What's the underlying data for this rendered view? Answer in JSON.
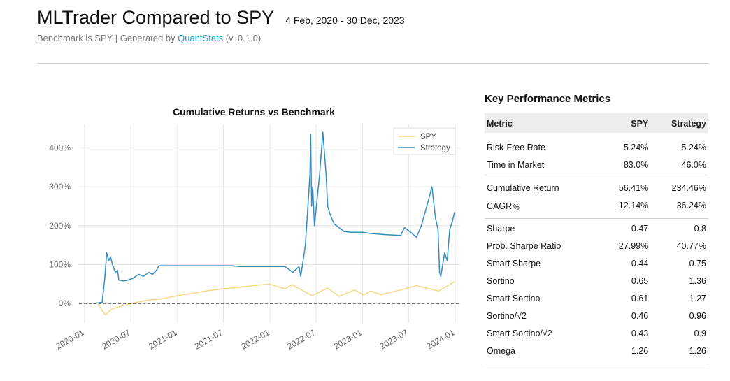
{
  "header": {
    "title": "MLTrader Compared to SPY",
    "date_range": "4 Feb, 2020 - 30 Dec, 2023",
    "subtitle_prefix": "Benchmark is SPY | Generated by ",
    "subtitle_link": "QuantStats",
    "subtitle_suffix": " (v. 0.1.0)"
  },
  "colors": {
    "spy": "#f5d77a",
    "strategy": "#348dc1",
    "link": "#1a9fc9"
  },
  "chart_data": {
    "type": "line",
    "title": "Cumulative Returns vs Benchmark",
    "xlabel": "",
    "ylabel": "",
    "x_tick_labels": [
      "2020-01",
      "2020-07",
      "2021-01",
      "2021-07",
      "2022-01",
      "2022-07",
      "2023-01",
      "2023-07",
      "2024-01"
    ],
    "y_tick_labels": [
      "0%",
      "100%",
      "200%",
      "300%",
      "400%"
    ],
    "ylim": [
      -50,
      460
    ],
    "xlim": [
      "2019-12-10",
      "2024-01-20"
    ],
    "grid": true,
    "legend": "top-right",
    "baseline": 0,
    "series": [
      {
        "name": "SPY",
        "x": [
          "2020-02-04",
          "2020-02-20",
          "2020-03-23",
          "2020-04-15",
          "2020-06-01",
          "2020-07-01",
          "2020-09-01",
          "2020-11-01",
          "2021-01-01",
          "2021-03-01",
          "2021-05-01",
          "2021-07-01",
          "2021-09-01",
          "2021-12-28",
          "2022-03-01",
          "2022-03-29",
          "2022-06-16",
          "2022-08-16",
          "2022-09-30",
          "2022-11-30",
          "2023-01-05",
          "2023-02-02",
          "2023-03-13",
          "2023-05-01",
          "2023-07-31",
          "2023-10-27",
          "2023-12-29"
        ],
        "values": [
          0,
          3,
          -30,
          -15,
          -5,
          0,
          8,
          12,
          20,
          26,
          33,
          38,
          42,
          50,
          38,
          48,
          20,
          40,
          18,
          35,
          22,
          32,
          23,
          30,
          46,
          32,
          56
        ]
      },
      {
        "name": "Strategy",
        "x": [
          "2020-02-04",
          "2020-03-10",
          "2020-03-20",
          "2020-03-28",
          "2020-04-05",
          "2020-04-12",
          "2020-04-20",
          "2020-05-01",
          "2020-05-10",
          "2020-05-15",
          "2020-06-01",
          "2020-06-20",
          "2020-07-10",
          "2020-08-01",
          "2020-08-20",
          "2020-09-10",
          "2020-09-25",
          "2020-10-10",
          "2020-10-20",
          "2021-08-01",
          "2021-09-01",
          "2022-03-01",
          "2022-04-01",
          "2022-04-25",
          "2022-05-02",
          "2022-05-09",
          "2022-05-20",
          "2022-05-31",
          "2022-06-07",
          "2022-06-10",
          "2022-06-14",
          "2022-06-18",
          "2022-06-25",
          "2022-07-15",
          "2022-07-28",
          "2022-08-10",
          "2022-08-16",
          "2022-08-25",
          "2022-09-10",
          "2022-09-30",
          "2022-10-20",
          "2022-11-15",
          "2022-12-31",
          "2023-01-31",
          "2023-03-31",
          "2023-05-31",
          "2023-06-15",
          "2023-07-15",
          "2023-08-01",
          "2023-08-20",
          "2023-09-15",
          "2023-10-01",
          "2023-10-15",
          "2023-10-25",
          "2023-10-31",
          "2023-11-05",
          "2023-11-10",
          "2023-11-20",
          "2023-11-30",
          "2023-12-10",
          "2023-12-20",
          "2023-12-29"
        ],
        "values": [
          0,
          3,
          60,
          130,
          110,
          120,
          100,
          80,
          85,
          60,
          58,
          60,
          65,
          75,
          70,
          80,
          75,
          85,
          97,
          97,
          95,
          95,
          80,
          95,
          70,
          100,
          150,
          260,
          330,
          435,
          250,
          300,
          200,
          330,
          440,
          330,
          250,
          230,
          205,
          195,
          185,
          183,
          183,
          180,
          177,
          175,
          195,
          180,
          170,
          200,
          260,
          300,
          220,
          190,
          80,
          70,
          90,
          130,
          110,
          190,
          210,
          235
        ]
      }
    ]
  },
  "metrics": {
    "title": "Key Performance Metrics",
    "headers": [
      "Metric",
      "SPY",
      "Strategy"
    ],
    "groups": [
      [
        [
          "Risk-Free Rate",
          "5.24%",
          "5.24%"
        ],
        [
          "Time in Market",
          "83.0%",
          "46.0%"
        ]
      ],
      [
        [
          "Cumulative Return",
          "56.41%",
          "234.46%"
        ],
        [
          "CAGR﹪",
          "12.14%",
          "36.24%"
        ]
      ],
      [
        [
          "Sharpe",
          "0.47",
          "0.8"
        ],
        [
          "Prob. Sharpe Ratio",
          "27.99%",
          "40.77%"
        ],
        [
          "Smart Sharpe",
          "0.44",
          "0.75"
        ],
        [
          "Sortino",
          "0.65",
          "1.36"
        ],
        [
          "Smart Sortino",
          "0.61",
          "1.27"
        ],
        [
          "Sortino/√2",
          "0.46",
          "0.96"
        ],
        [
          "Smart Sortino/√2",
          "0.43",
          "0.9"
        ],
        [
          "Omega",
          "1.26",
          "1.26"
        ]
      ]
    ]
  }
}
